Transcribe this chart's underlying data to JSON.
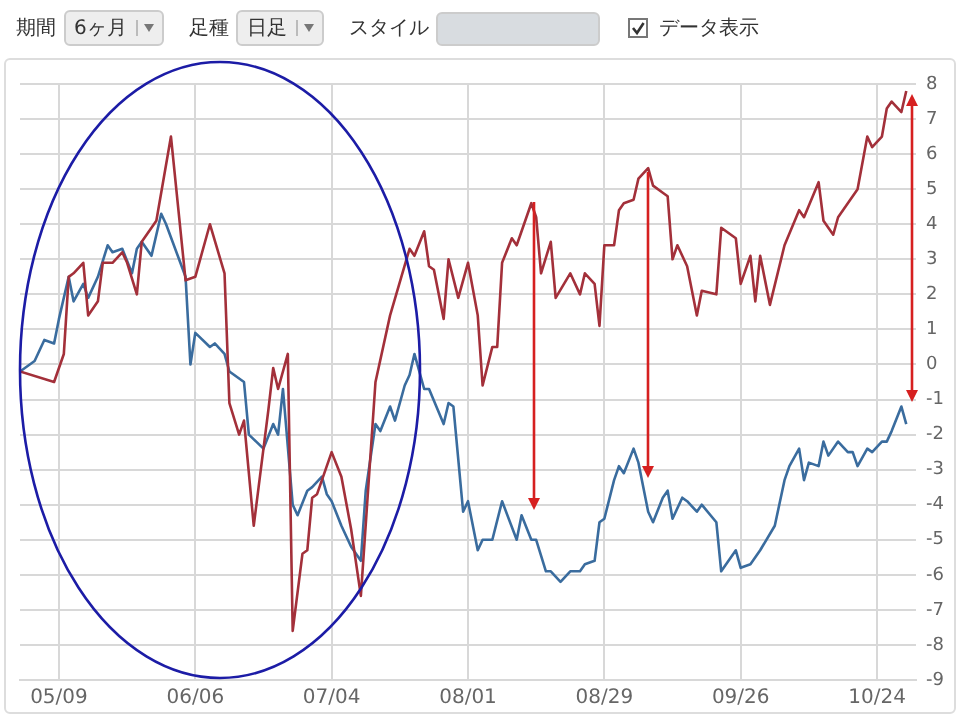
{
  "chart_data": {
    "type": "line",
    "annotations": [
      "期間",
      "6ヶ月",
      "足種",
      "日足",
      "スタイル",
      "データ表示"
    ],
    "xlim": [
      "--05-01",
      "--11-01"
    ],
    "xticks": [
      {
        "value": "--05-09",
        "label": "05/09"
      },
      {
        "value": "--06-06",
        "label": "06/06"
      },
      {
        "value": "--07-04",
        "label": "07/04"
      },
      {
        "value": "--08-01",
        "label": "08/01"
      },
      {
        "value": "--08-29",
        "label": "08/29"
      },
      {
        "value": "--09-26",
        "label": "09/26"
      },
      {
        "value": "--10-24",
        "label": "10/24"
      }
    ],
    "ylim": [
      -9,
      8
    ],
    "yticks": [
      -9,
      -8,
      -7,
      -6,
      -5,
      -4,
      -3,
      -2,
      -1,
      0,
      1,
      2,
      3,
      4,
      5,
      6,
      7,
      8
    ],
    "grid": true,
    "legend": false,
    "marker": "none",
    "line_style": "solid",
    "series": [
      {
        "color": "#a3303a",
        "x": [
          "--05-01",
          "--05-08",
          "--05-10",
          "--05-11",
          "--05-12",
          "--05-14",
          "--05-15",
          "--05-17",
          "--05-18",
          "--05-20",
          "--05-22",
          "--05-23",
          "--05-25",
          "--05-26",
          "--05-29",
          "--06-01",
          "--06-04",
          "--06-06",
          "--06-09",
          "--06-12",
          "--06-13",
          "--06-15",
          "--06-16",
          "--06-18",
          "--06-19",
          "--06-21",
          "--06-22",
          "--06-23",
          "--06-25",
          "--06-26",
          "--06-28",
          "--06-29",
          "--06-30",
          "--07-01",
          "--07-02",
          "--07-04",
          "--07-06",
          "--07-08",
          "--07-10",
          "--07-13",
          "--07-16",
          "--07-20",
          "--07-21",
          "--07-23",
          "--07-24",
          "--07-25",
          "--07-27",
          "--07-28",
          "--07-30",
          "--08-01",
          "--08-03",
          "--08-04",
          "--08-06",
          "--08-07",
          "--08-08",
          "--08-10",
          "--08-11",
          "--08-14",
          "--08-15",
          "--08-16",
          "--08-18",
          "--08-19",
          "--08-22",
          "--08-24",
          "--08-25",
          "--08-27",
          "--08-28",
          "--08-29",
          "--08-31",
          "--09-01",
          "--09-02",
          "--09-04",
          "--09-05",
          "--09-07",
          "--09-08",
          "--09-10",
          "--09-11",
          "--09-12",
          "--09-13",
          "--09-15",
          "--09-17",
          "--09-18",
          "--09-21",
          "--09-22",
          "--09-25",
          "--09-26",
          "--09-28",
          "--09-29",
          "--09-30",
          "--10-02",
          "--10-05",
          "--10-08",
          "--10-09",
          "--10-12",
          "--10-13",
          "--10-15",
          "--10-16",
          "--10-20",
          "--10-22",
          "--10-23",
          "--10-25",
          "--10-26",
          "--10-27",
          "--10-29",
          "--10-30"
        ],
        "values": [
          -0.2,
          -0.5,
          0.3,
          2.5,
          2.6,
          2.9,
          1.4,
          1.8,
          2.9,
          2.9,
          3.2,
          2.9,
          2.0,
          3.5,
          4.1,
          6.5,
          2.4,
          2.5,
          4.0,
          2.6,
          -1.1,
          -2.0,
          -1.6,
          -4.6,
          -3.5,
          -1.3,
          -0.1,
          -0.7,
          0.3,
          -7.6,
          -5.4,
          -5.3,
          -3.8,
          -3.7,
          -3.3,
          -2.5,
          -3.2,
          -4.7,
          -6.6,
          -0.5,
          1.4,
          3.3,
          3.1,
          3.8,
          2.8,
          2.7,
          1.3,
          3.0,
          1.9,
          2.9,
          1.4,
          -0.6,
          0.5,
          0.5,
          2.9,
          3.6,
          3.4,
          4.6,
          4.2,
          2.6,
          3.5,
          1.9,
          2.6,
          2.0,
          2.6,
          2.3,
          1.1,
          3.4,
          3.4,
          4.4,
          4.6,
          4.7,
          5.3,
          5.6,
          5.1,
          4.9,
          4.8,
          3.0,
          3.4,
          2.8,
          1.4,
          2.1,
          2.0,
          3.9,
          3.6,
          2.3,
          3.1,
          1.8,
          3.1,
          1.7,
          3.4,
          4.4,
          4.2,
          5.2,
          4.1,
          3.7,
          4.2,
          5.0,
          6.5,
          6.2,
          6.5,
          7.3,
          7.5,
          7.2,
          7.8
        ]
      },
      {
        "color": "#3a6c9e",
        "x": [
          "--05-01",
          "--05-04",
          "--05-06",
          "--05-08",
          "--05-09",
          "--05-11",
          "--05-12",
          "--05-14",
          "--05-15",
          "--05-17",
          "--05-19",
          "--05-20",
          "--05-22",
          "--05-24",
          "--05-25",
          "--05-26",
          "--05-28",
          "--05-30",
          "--05-31",
          "--06-04",
          "--06-05",
          "--06-06",
          "--06-09",
          "--06-10",
          "--06-12",
          "--06-13",
          "--06-16",
          "--06-17",
          "--06-20",
          "--06-22",
          "--06-23",
          "--06-24",
          "--06-26",
          "--06-27",
          "--06-29",
          "--06-30",
          "--07-02",
          "--07-03",
          "--07-04",
          "--07-06",
          "--07-08",
          "--07-10",
          "--07-11",
          "--07-13",
          "--07-14",
          "--07-16",
          "--07-17",
          "--07-19",
          "--07-20",
          "--07-21",
          "--07-23",
          "--07-24",
          "--07-27",
          "--07-28",
          "--07-29",
          "--07-31",
          "--08-01",
          "--08-03",
          "--08-04",
          "--08-06",
          "--08-08",
          "--08-11",
          "--08-12",
          "--08-14",
          "--08-15",
          "--08-17",
          "--08-18",
          "--08-20",
          "--08-22",
          "--08-24",
          "--08-25",
          "--08-27",
          "--08-28",
          "--08-29",
          "--08-31",
          "--09-01",
          "--09-02",
          "--09-04",
          "--09-05",
          "--09-07",
          "--09-08",
          "--09-10",
          "--09-11",
          "--09-12",
          "--09-14",
          "--09-15",
          "--09-17",
          "--09-18",
          "--09-21",
          "--09-22",
          "--09-24",
          "--09-25",
          "--09-26",
          "--09-28",
          "--09-30",
          "--10-03",
          "--10-05",
          "--10-06",
          "--10-08",
          "--10-09",
          "--10-10",
          "--10-12",
          "--10-13",
          "--10-14",
          "--10-16",
          "--10-18",
          "--10-19",
          "--10-20",
          "--10-22",
          "--10-23",
          "--10-25",
          "--10-26",
          "--10-27",
          "--10-29",
          "--10-30"
        ],
        "values": [
          -0.2,
          0.1,
          0.7,
          0.6,
          1.3,
          2.5,
          1.8,
          2.3,
          1.9,
          2.5,
          3.4,
          3.2,
          3.3,
          2.6,
          3.3,
          3.5,
          3.1,
          4.3,
          4.0,
          2.5,
          0.0,
          0.9,
          0.5,
          0.6,
          0.3,
          -0.2,
          -0.5,
          -2.0,
          -2.4,
          -1.7,
          -2.0,
          -0.7,
          -4.0,
          -4.3,
          -3.6,
          -3.5,
          -3.2,
          -3.7,
          -3.9,
          -4.6,
          -5.2,
          -5.6,
          -3.6,
          -1.7,
          -1.9,
          -1.2,
          -1.6,
          -0.6,
          -0.3,
          0.3,
          -0.7,
          -0.7,
          -1.7,
          -1.1,
          -1.2,
          -4.2,
          -3.9,
          -5.3,
          -5.0,
          -5.0,
          -3.9,
          -5.0,
          -4.3,
          -5.0,
          -5.0,
          -5.9,
          -5.9,
          -6.2,
          -5.9,
          -5.9,
          -5.7,
          -5.6,
          -4.5,
          -4.4,
          -3.3,
          -2.9,
          -3.1,
          -2.4,
          -2.8,
          -4.2,
          -4.5,
          -3.8,
          -3.6,
          -4.4,
          -3.8,
          -3.9,
          -4.2,
          -4.0,
          -4.5,
          -5.9,
          -5.5,
          -5.3,
          -5.8,
          -5.7,
          -5.3,
          -4.6,
          -3.3,
          -2.9,
          -2.4,
          -3.3,
          -2.8,
          -2.9,
          -2.2,
          -2.6,
          -2.2,
          -2.5,
          -2.5,
          -2.9,
          -2.4,
          -2.5,
          -2.2,
          -2.2,
          -1.9,
          -1.2,
          -1.7
        ]
      }
    ]
  }
}
